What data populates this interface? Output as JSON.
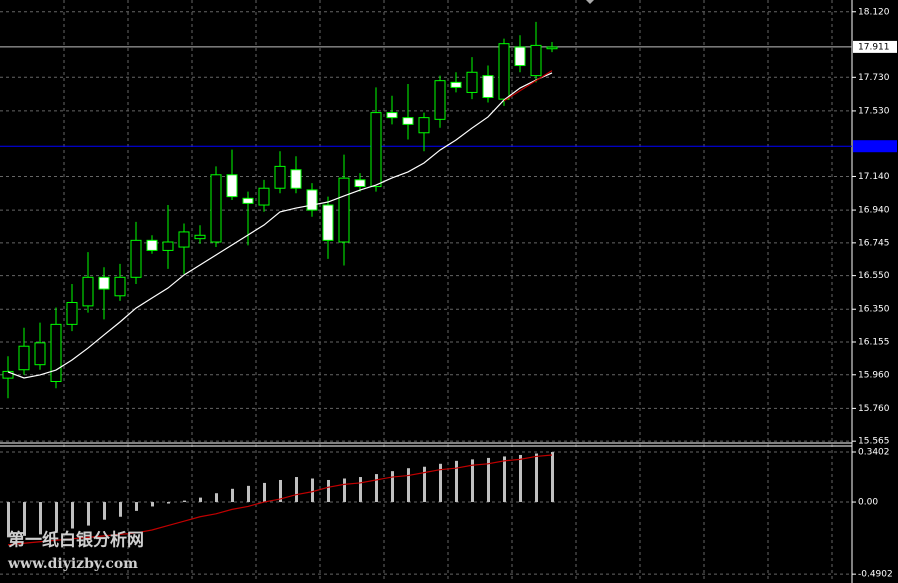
{
  "chart_data": [
    {
      "type": "candlestick",
      "open": [
        15.94,
        15.99,
        16.02,
        15.92,
        16.26,
        16.37,
        16.54,
        16.43,
        16.54,
        16.76,
        16.7,
        16.72,
        16.77,
        16.75,
        17.15,
        17.01,
        16.97,
        17.07,
        17.18,
        17.06,
        16.97,
        16.75,
        17.12,
        17.08,
        17.52,
        17.49,
        17.4,
        17.48,
        17.7,
        17.64,
        17.74,
        17.6,
        17.91,
        17.74,
        17.9
      ],
      "high": [
        16.07,
        16.24,
        16.27,
        16.36,
        16.5,
        16.69,
        16.6,
        16.62,
        16.87,
        16.79,
        16.97,
        16.86,
        16.85,
        17.2,
        17.3,
        17.05,
        17.12,
        17.29,
        17.26,
        17.1,
        17.02,
        17.27,
        17.16,
        17.67,
        17.62,
        17.69,
        17.52,
        17.74,
        17.76,
        17.85,
        17.8,
        17.96,
        17.98,
        18.06,
        17.94
      ],
      "low": [
        15.82,
        15.96,
        15.99,
        15.88,
        16.22,
        16.33,
        16.29,
        16.4,
        16.5,
        16.68,
        16.59,
        16.56,
        16.74,
        16.72,
        17.0,
        16.73,
        16.93,
        17.04,
        17.04,
        16.9,
        16.65,
        16.61,
        17.05,
        17.05,
        17.45,
        17.36,
        17.29,
        17.43,
        17.64,
        17.6,
        17.58,
        17.56,
        17.76,
        17.7,
        17.88
      ],
      "close": [
        15.98,
        16.13,
        16.15,
        16.26,
        16.39,
        16.54,
        16.47,
        16.54,
        16.76,
        16.7,
        16.75,
        16.81,
        16.79,
        17.15,
        17.02,
        16.98,
        17.07,
        17.2,
        17.07,
        16.94,
        16.76,
        17.13,
        17.08,
        17.52,
        17.49,
        17.45,
        17.49,
        17.71,
        17.67,
        17.76,
        17.61,
        17.93,
        17.8,
        17.92,
        17.91
      ],
      "series": [
        {
          "color": "#ffffff",
          "values": [
            15.977,
            15.941,
            15.959,
            15.988,
            16.048,
            16.119,
            16.197,
            16.274,
            16.357,
            16.417,
            16.476,
            16.554,
            16.613,
            16.673,
            16.732,
            16.792,
            16.851,
            16.929,
            16.952,
            16.97,
            16.988,
            17.024,
            17.059,
            17.089,
            17.131,
            17.167,
            17.22,
            17.297,
            17.357,
            17.428,
            17.494,
            17.595,
            17.666,
            17.714,
            17.756
          ]
        },
        {
          "color": "#c00000",
          "values": [
            null,
            null,
            null,
            null,
            null,
            null,
            null,
            null,
            null,
            null,
            null,
            null,
            null,
            null,
            null,
            null,
            null,
            null,
            null,
            null,
            null,
            null,
            null,
            null,
            null,
            null,
            null,
            null,
            null,
            null,
            null,
            17.59,
            17.65,
            17.71,
            17.77
          ]
        }
      ],
      "bull_color": "#000000",
      "bear_color": "#ffffff",
      "outline_color": "#00ff00",
      "ylim": [
        15.56,
        18.19
      ],
      "yticks": [
        {
          "value": 18.12,
          "label": "18.120"
        },
        {
          "value": 17.73,
          "label": "17.730"
        },
        {
          "value": 17.53,
          "label": "17.530"
        },
        {
          "value": 17.14,
          "label": "17.140"
        },
        {
          "value": 16.94,
          "label": "16.940"
        },
        {
          "value": 16.745,
          "label": "16.745"
        },
        {
          "value": 16.55,
          "label": "16.550"
        },
        {
          "value": 16.35,
          "label": "16.350"
        },
        {
          "value": 16.155,
          "label": "16.155"
        },
        {
          "value": 15.96,
          "label": "15.960"
        },
        {
          "value": 15.76,
          "label": "15.760"
        },
        {
          "value": 15.565,
          "label": "15.565"
        }
      ],
      "hlines": [
        {
          "value": 17.911,
          "label": "17.911",
          "color": "#c0c0c0"
        },
        {
          "value": 17.32,
          "color": "#0000ff"
        }
      ],
      "grid": true
    },
    {
      "type": "bar",
      "values": [
        -0.24,
        -0.23,
        -0.22,
        -0.2,
        -0.18,
        -0.16,
        -0.12,
        -0.1,
        -0.06,
        -0.03,
        -0.01,
        0.01,
        0.03,
        0.06,
        0.09,
        0.11,
        0.13,
        0.15,
        0.17,
        0.16,
        0.15,
        0.16,
        0.17,
        0.19,
        0.21,
        0.23,
        0.24,
        0.26,
        0.28,
        0.29,
        0.3,
        0.31,
        0.32,
        0.33,
        0.34
      ],
      "color": "#c0c0c0",
      "series": [
        {
          "color": "#c00000",
          "values": [
            -0.29,
            -0.28,
            -0.27,
            -0.26,
            -0.25,
            -0.24,
            -0.23,
            -0.22,
            -0.21,
            -0.19,
            -0.16,
            -0.13,
            -0.1,
            -0.08,
            -0.05,
            -0.03,
            0.0,
            0.02,
            0.05,
            0.07,
            0.1,
            0.12,
            0.13,
            0.15,
            0.17,
            0.18,
            0.2,
            0.22,
            0.23,
            0.25,
            0.26,
            0.28,
            0.29,
            0.31,
            0.32
          ]
        }
      ],
      "ylim": [
        -0.53,
        0.381
      ],
      "yticks": [
        0.3402,
        {
          "value": 0,
          "label": "0.00"
        },
        -0.4902
      ],
      "grid": true
    }
  ],
  "watermark": {
    "title": "第一纸白银分析网",
    "url": "www.diyizby.com"
  }
}
